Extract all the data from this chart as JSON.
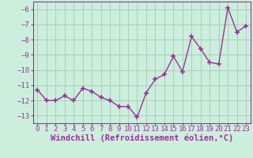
{
  "x": [
    0,
    1,
    2,
    3,
    4,
    5,
    6,
    7,
    8,
    9,
    10,
    11,
    12,
    13,
    14,
    15,
    16,
    17,
    18,
    19,
    20,
    21,
    22,
    23
  ],
  "y": [
    -11.3,
    -12.0,
    -12.0,
    -11.7,
    -12.0,
    -11.2,
    -11.4,
    -11.8,
    -12.0,
    -12.4,
    -12.4,
    -13.1,
    -11.5,
    -10.6,
    -10.3,
    -9.1,
    -10.1,
    -7.8,
    -8.6,
    -9.5,
    -9.6,
    -5.9,
    -7.5,
    -7.1
  ],
  "line_color": "#993399",
  "marker": "+",
  "markersize": 4,
  "linewidth": 1.0,
  "xlabel": "Windchill (Refroidissement éolien,°C)",
  "xlabel_fontsize": 7.5,
  "ylim": [
    -13.5,
    -5.5
  ],
  "yticks": [
    -13,
    -12,
    -11,
    -10,
    -9,
    -8,
    -7,
    -6
  ],
  "xticks": [
    0,
    1,
    2,
    3,
    4,
    5,
    6,
    7,
    8,
    9,
    10,
    11,
    12,
    13,
    14,
    15,
    16,
    17,
    18,
    19,
    20,
    21,
    22,
    23
  ],
  "xlim": [
    -0.5,
    23.5
  ],
  "bg_color": "#cceedd",
  "grid_color": "#aaccbb",
  "tick_color": "#993399",
  "tick_fontsize": 6.5
}
